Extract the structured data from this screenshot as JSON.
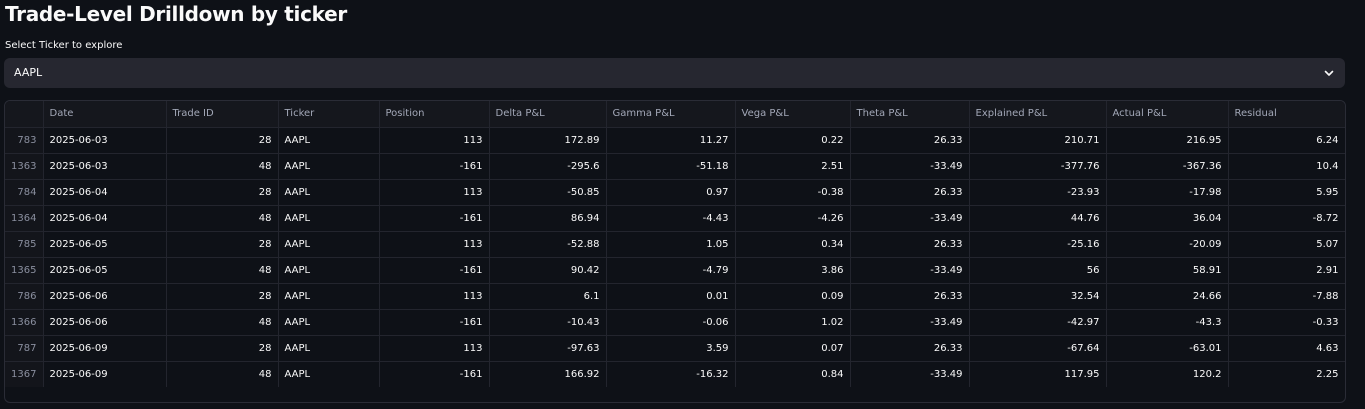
{
  "page": {
    "title": "Trade-Level Drilldown by ticker",
    "select_label": "Select Ticker to explore",
    "selected_ticker": "AAPL"
  },
  "icons": {
    "dropdown": "chevron-down-icon"
  },
  "table": {
    "columns": [
      "",
      "Date",
      "Trade ID",
      "Ticker",
      "Position",
      "Delta P&L",
      "Gamma P&L",
      "Vega P&L",
      "Theta P&L",
      "Explained P&L",
      "Actual P&L",
      "Residual"
    ],
    "rows": [
      [
        "783",
        "2025-06-03",
        "28",
        "AAPL",
        "113",
        "172.89",
        "11.27",
        "0.22",
        "26.33",
        "210.71",
        "216.95",
        "6.24"
      ],
      [
        "1363",
        "2025-06-03",
        "48",
        "AAPL",
        "-161",
        "-295.6",
        "-51.18",
        "2.51",
        "-33.49",
        "-377.76",
        "-367.36",
        "10.4"
      ],
      [
        "784",
        "2025-06-04",
        "28",
        "AAPL",
        "113",
        "-50.85",
        "0.97",
        "-0.38",
        "26.33",
        "-23.93",
        "-17.98",
        "5.95"
      ],
      [
        "1364",
        "2025-06-04",
        "48",
        "AAPL",
        "-161",
        "86.94",
        "-4.43",
        "-4.26",
        "-33.49",
        "44.76",
        "36.04",
        "-8.72"
      ],
      [
        "785",
        "2025-06-05",
        "28",
        "AAPL",
        "113",
        "-52.88",
        "1.05",
        "0.34",
        "26.33",
        "-25.16",
        "-20.09",
        "5.07"
      ],
      [
        "1365",
        "2025-06-05",
        "48",
        "AAPL",
        "-161",
        "90.42",
        "-4.79",
        "3.86",
        "-33.49",
        "56",
        "58.91",
        "2.91"
      ],
      [
        "786",
        "2025-06-06",
        "28",
        "AAPL",
        "113",
        "6.1",
        "0.01",
        "0.09",
        "26.33",
        "32.54",
        "24.66",
        "-7.88"
      ],
      [
        "1366",
        "2025-06-06",
        "48",
        "AAPL",
        "-161",
        "-10.43",
        "-0.06",
        "1.02",
        "-33.49",
        "-42.97",
        "-43.3",
        "-0.33"
      ],
      [
        "787",
        "2025-06-09",
        "28",
        "AAPL",
        "113",
        "-97.63",
        "3.59",
        "0.07",
        "26.33",
        "-67.64",
        "-63.01",
        "4.63"
      ],
      [
        "1367",
        "2025-06-09",
        "48",
        "AAPL",
        "-161",
        "166.92",
        "-16.32",
        "0.84",
        "-33.49",
        "117.95",
        "120.2",
        "2.25"
      ]
    ]
  }
}
